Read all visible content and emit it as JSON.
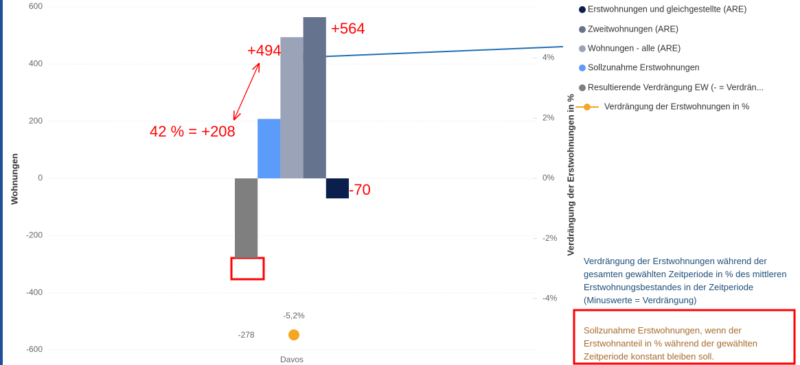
{
  "chart_data": {
    "type": "bar",
    "ylabel": "Wohnungen",
    "y2label": "Verdrängung der Erstwohnungen in %",
    "categories": [
      "Davos"
    ],
    "series": [
      {
        "name": "Erstwohnungen und gleichgestellte (ARE)",
        "color": "#0b1f4d",
        "values": [
          -70
        ]
      },
      {
        "name": "Zweitwohnungen (ARE)",
        "color": "#66738f",
        "values": [
          564
        ]
      },
      {
        "name": "Wohnungen - alle (ARE)",
        "color": "#9aa3b8",
        "values": [
          494
        ]
      },
      {
        "name": "Sollzunahme Erstwohnungen",
        "color": "#5b9bfa",
        "values": [
          208
        ]
      },
      {
        "name": "Resultierende Verdrängung EW (- = Verdrän...",
        "color": "#7f7f7f",
        "values": [
          -278
        ],
        "value_labels": [
          "-278"
        ]
      },
      {
        "name": "Verdrängung der Erstwohnungen in %",
        "color": "#f5a623",
        "type": "line",
        "axis": "y2",
        "values": [
          -5.2
        ],
        "value_labels": [
          "-5,2%"
        ]
      }
    ],
    "ylim": [
      -600,
      600
    ],
    "yticks": [
      -600,
      -400,
      -200,
      0,
      200,
      400,
      600
    ],
    "y2lim": [
      -5.7,
      5.7
    ],
    "y2ticks": [
      {
        "value": -4,
        "label": "-4%"
      },
      {
        "value": -2,
        "label": "-2%"
      },
      {
        "value": 0,
        "label": "0%"
      },
      {
        "value": 2,
        "label": "2%"
      },
      {
        "value": 4,
        "label": "4%"
      }
    ],
    "grid": true,
    "legend": "top-right",
    "annotations": [
      "+564",
      "+494",
      "42 % = +208",
      "-70"
    ]
  },
  "notes": [
    "Verdrängung der Erstwohnungen während der gesamten gewählten Zeitperiode in % des mittleren Erstwohnungsbestandes in der Zeitperiode (Minuswerte = Verdrängung)",
    "Sollzunahme Erstwohnungen, wenn der Erstwohnanteil in % während der gewählten Zeitperiode konstant bleiben soll."
  ]
}
